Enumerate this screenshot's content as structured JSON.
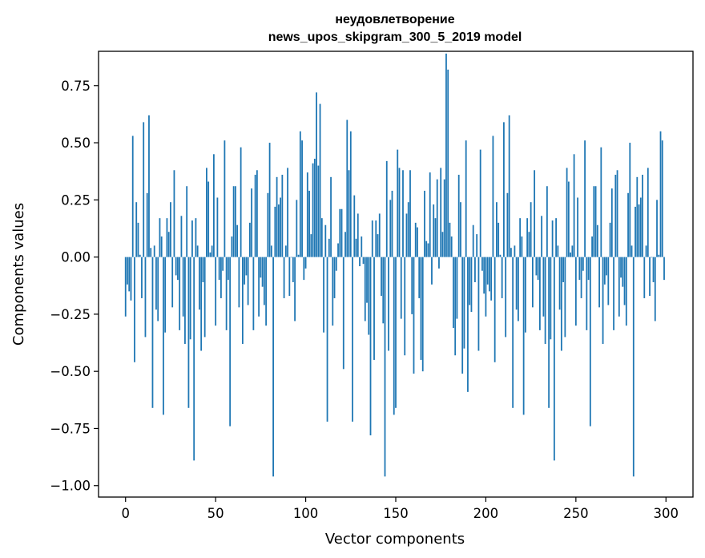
{
  "chart_data": {
    "type": "bar",
    "title": "неудовлетворение",
    "subtitle": "news_upos_skipgram_300_5_2019 model",
    "xlabel": "Vector components",
    "ylabel": "Components values",
    "xlim": [
      -15,
      315
    ],
    "ylim": [
      -1.05,
      0.9
    ],
    "xticks": [
      0,
      50,
      100,
      150,
      200,
      250,
      300
    ],
    "xtick_labels": [
      "0",
      "50",
      "100",
      "150",
      "200",
      "250",
      "300"
    ],
    "yticks": [
      -1.0,
      -0.75,
      -0.5,
      -0.25,
      0.0,
      0.25,
      0.5,
      0.75
    ],
    "ytick_labels": [
      "−1.00",
      "−0.75",
      "−0.50",
      "−0.25",
      "0.00",
      "0.25",
      "0.50",
      "0.75"
    ],
    "grid": false,
    "bar_color": "#1f77b4",
    "x_start": 0,
    "values": [
      -0.26,
      -0.12,
      -0.15,
      -0.19,
      0.53,
      -0.46,
      0.24,
      0.15,
      0.01,
      -0.18,
      0.59,
      -0.35,
      0.28,
      0.62,
      0.04,
      -0.66,
      0.05,
      -0.23,
      -0.28,
      0.17,
      0.09,
      -0.69,
      -0.33,
      0.17,
      0.11,
      0.24,
      -0.22,
      0.38,
      -0.08,
      -0.1,
      -0.32,
      0.18,
      -0.26,
      -0.38,
      0.31,
      -0.66,
      -0.36,
      0.16,
      -0.89,
      0.17,
      0.05,
      -0.23,
      -0.41,
      -0.11,
      -0.35,
      0.39,
      0.33,
      0.02,
      0.05,
      0.45,
      -0.3,
      0.26,
      -0.1,
      -0.18,
      -0.06,
      0.51,
      -0.32,
      -0.1,
      -0.74,
      0.09,
      0.31,
      0.31,
      0.14,
      -0.22,
      0.48,
      -0.38,
      -0.12,
      -0.08,
      -0.21,
      0.15,
      0.3,
      -0.32,
      0.36,
      0.38,
      -0.26,
      -0.09,
      -0.13,
      -0.21,
      -0.3,
      0.28,
      0.5,
      0.05,
      -0.96,
      0.22,
      0.35,
      0.23,
      0.26,
      0.36,
      -0.18,
      0.05,
      0.39,
      -0.17,
      0.0,
      -0.11,
      -0.28,
      0.25,
      0.01,
      0.55,
      0.51,
      -0.1,
      -0.05,
      0.37,
      0.29,
      0.1,
      0.41,
      0.43,
      0.72,
      0.4,
      0.67,
      0.17,
      -0.33,
      0.14,
      -0.72,
      0.08,
      0.35,
      -0.3,
      -0.18,
      -0.06,
      0.06,
      0.21,
      0.21,
      -0.49,
      0.11,
      0.6,
      0.38,
      0.55,
      -0.72,
      0.27,
      0.08,
      0.19,
      -0.04,
      0.09,
      -0.03,
      -0.28,
      -0.2,
      -0.34,
      -0.78,
      0.16,
      -0.45,
      0.16,
      0.1,
      0.19,
      -0.17,
      -0.29,
      -0.96,
      0.42,
      -0.41,
      0.25,
      0.29,
      -0.69,
      -0.66,
      0.47,
      0.39,
      -0.27,
      0.38,
      -0.43,
      0.19,
      0.24,
      0.38,
      -0.25,
      -0.51,
      0.15,
      0.13,
      -0.18,
      -0.45,
      -0.5,
      0.29,
      0.07,
      0.06,
      0.37,
      -0.12,
      0.23,
      0.17,
      0.34,
      -0.05,
      0.39,
      0.11,
      0.34,
      0.89,
      0.82,
      0.15,
      0.09,
      -0.31,
      -0.43,
      -0.27,
      0.36,
      0.24,
      -0.51,
      -0.4,
      0.51,
      -0.59,
      -0.21,
      -0.24,
      0.14,
      -0.11,
      0.1,
      -0.41,
      0.47,
      -0.06,
      -0.16
    ]
  }
}
